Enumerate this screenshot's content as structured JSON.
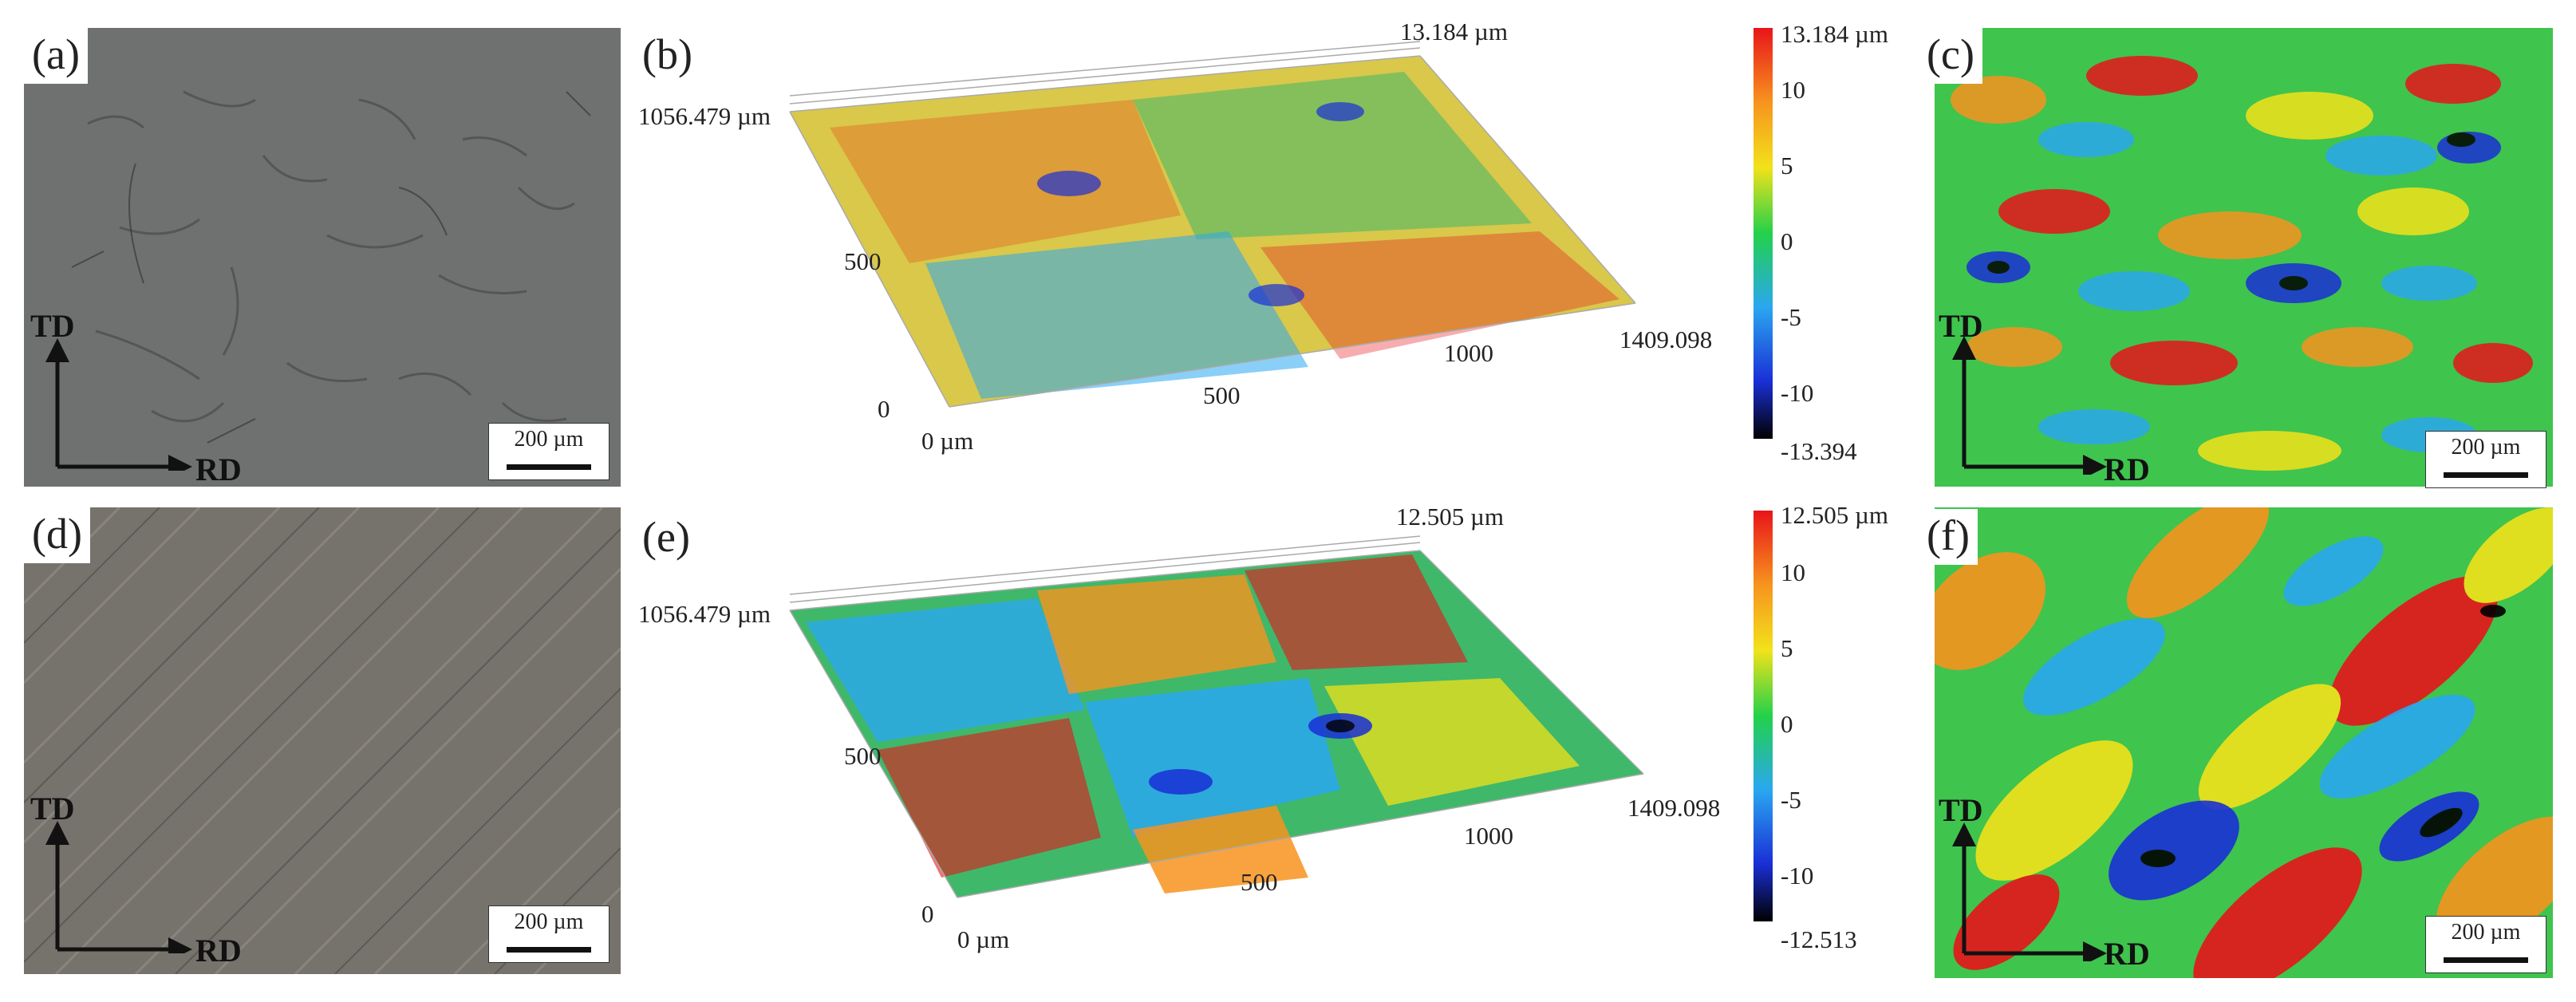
{
  "panels": [
    {
      "label": "(a)",
      "scale_bar": "200 µm",
      "axis_vertical": "TD",
      "axis_horizontal": "RD"
    },
    {
      "label": "(b)",
      "top_value": "13.184 µm",
      "y_extent": "1056.479 µm",
      "x_extent": "1409.098",
      "y_ticks": [
        "500",
        "0"
      ],
      "x_ticks": [
        "0 µm",
        "500",
        "1000"
      ],
      "colorbar": {
        "max": "13.184 µm",
        "ticks": [
          "10",
          "5",
          "0",
          "-5",
          "-10"
        ],
        "min": "-13.394"
      }
    },
    {
      "label": "(c)",
      "scale_bar": "200 µm",
      "axis_vertical": "TD",
      "axis_horizontal": "RD"
    },
    {
      "label": "(d)",
      "scale_bar": "200 µm",
      "axis_vertical": "TD",
      "axis_horizontal": "RD"
    },
    {
      "label": "(e)",
      "top_value": "12.505 µm",
      "y_extent": "1056.479 µm",
      "x_extent": "1409.098",
      "y_ticks": [
        "500",
        "0"
      ],
      "x_ticks": [
        "0 µm",
        "500",
        "1000"
      ],
      "colorbar": {
        "max": "12.505 µm",
        "ticks": [
          "10",
          "5",
          "0",
          "-5",
          "-10"
        ],
        "min": "-12.513"
      }
    },
    {
      "label": "(f)",
      "scale_bar": "200 µm",
      "axis_vertical": "TD",
      "axis_horizontal": "RD"
    }
  ],
  "colors": {
    "height_scale": [
      "#000000",
      "#1a2fd6",
      "#2aa7f0",
      "#22d14a",
      "#f2e21a",
      "#f7931e",
      "#e8141a"
    ]
  }
}
